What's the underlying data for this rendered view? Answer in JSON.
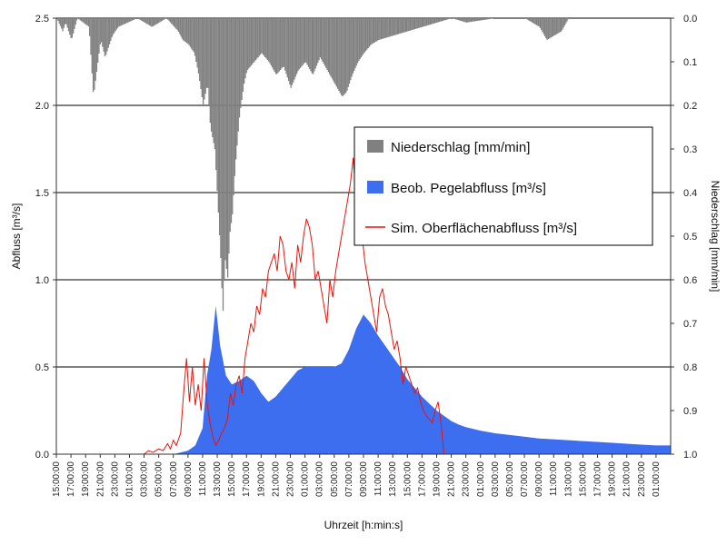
{
  "chart_data": {
    "type": "area",
    "xlabel": "Uhrzeit [h:min:s]",
    "ylabel_left": "Abfluss [m³/s]",
    "ylabel_right": "Niederschlag [mm/min]",
    "ylim_left": [
      0,
      2.5
    ],
    "yticks_left": [
      "0.0",
      "0.5",
      "1.0",
      "1.5",
      "2.0",
      "2.5"
    ],
    "ylim_right": [
      1.0,
      0.0
    ],
    "yticks_right": [
      "0.0",
      "0.1",
      "0.2",
      "0.3",
      "0.4",
      "0.5",
      "0.6",
      "0.7",
      "0.8",
      "0.9",
      "1.0"
    ],
    "x_tick_labels": [
      "15:00:00",
      "17:00:00",
      "19:00:00",
      "21:00:00",
      "23:00:00",
      "01:00:00",
      "03:00:00",
      "05:00:00",
      "07:00:00",
      "09:00:00",
      "11:00:00",
      "13:00:00",
      "15:00:00",
      "17:00:00",
      "19:00:00",
      "21:00:00",
      "23:00:00",
      "01:00:00",
      "03:00:00",
      "05:00:00",
      "07:00:00",
      "09:00:00",
      "11:00:00",
      "13:00:00",
      "15:00:00",
      "17:00:00",
      "19:00:00",
      "21:00:00",
      "23:00:00",
      "01:00:00",
      "03:00:00",
      "05:00:00",
      "07:00:00",
      "09:00:00",
      "11:00:00",
      "13:00:00",
      "15:00:00",
      "17:00:00",
      "19:00:00",
      "21:00:00",
      "23:00:00",
      "01:00:00"
    ],
    "grid": true,
    "legend_position": "upper-right",
    "series": [
      {
        "name": "Niederschlag [mm/min]",
        "kind": "inverted-bar",
        "axis": "right",
        "color": "#808080",
        "points": [
          [
            0,
            0.0
          ],
          [
            0.4,
            0.03
          ],
          [
            0.6,
            0.01
          ],
          [
            1.0,
            0.05
          ],
          [
            1.4,
            0.0
          ],
          [
            2.2,
            0.02
          ],
          [
            2.5,
            0.18
          ],
          [
            3.0,
            0.05
          ],
          [
            3.3,
            0.09
          ],
          [
            3.8,
            0.04
          ],
          [
            4.2,
            0.02
          ],
          [
            5.5,
            0.0
          ],
          [
            6.5,
            0.02
          ],
          [
            7.5,
            0.0
          ],
          [
            8.3,
            0.03
          ],
          [
            8.6,
            0.05
          ],
          [
            9.0,
            0.06
          ],
          [
            9.4,
            0.08
          ],
          [
            9.7,
            0.13
          ],
          [
            10.0,
            0.2
          ],
          [
            10.3,
            0.15
          ],
          [
            10.5,
            0.25
          ],
          [
            10.8,
            0.3
          ],
          [
            11.0,
            0.42
          ],
          [
            11.2,
            0.55
          ],
          [
            11.35,
            0.68
          ],
          [
            11.5,
            0.55
          ],
          [
            11.7,
            0.6
          ],
          [
            11.8,
            0.5
          ],
          [
            12.0,
            0.45
          ],
          [
            12.2,
            0.34
          ],
          [
            12.5,
            0.22
          ],
          [
            12.8,
            0.15
          ],
          [
            13.0,
            0.12
          ],
          [
            13.5,
            0.1
          ],
          [
            14.0,
            0.08
          ],
          [
            14.5,
            0.1
          ],
          [
            15.0,
            0.13
          ],
          [
            15.5,
            0.11
          ],
          [
            16.0,
            0.16
          ],
          [
            16.5,
            0.12
          ],
          [
            17.0,
            0.1
          ],
          [
            17.5,
            0.13
          ],
          [
            18.0,
            0.09
          ],
          [
            18.5,
            0.12
          ],
          [
            19.0,
            0.15
          ],
          [
            19.5,
            0.18
          ],
          [
            19.8,
            0.17
          ],
          [
            20.2,
            0.13
          ],
          [
            20.6,
            0.1
          ],
          [
            21.0,
            0.08
          ],
          [
            21.5,
            0.06
          ],
          [
            22.0,
            0.05
          ],
          [
            23.0,
            0.04
          ],
          [
            24.0,
            0.03
          ],
          [
            25.0,
            0.02
          ],
          [
            26.0,
            0.01
          ],
          [
            27.0,
            0.0
          ],
          [
            28.0,
            0.01
          ],
          [
            30.0,
            0.0
          ],
          [
            32.0,
            0.0
          ],
          [
            33.0,
            0.02
          ],
          [
            33.5,
            0.05
          ],
          [
            34.0,
            0.04
          ],
          [
            34.5,
            0.03
          ],
          [
            35.0,
            0.0
          ],
          [
            36.0,
            0.0
          ],
          [
            40.0,
            0.0
          ],
          [
            42.0,
            0.0
          ]
        ]
      },
      {
        "name": "Beob. Pegelabfluss [m³/s]",
        "kind": "area",
        "axis": "left",
        "color": "#3E6EF0",
        "points": [
          [
            0,
            0.0
          ],
          [
            8.0,
            0.0
          ],
          [
            8.5,
            0.01
          ],
          [
            9.0,
            0.02
          ],
          [
            9.5,
            0.05
          ],
          [
            10.0,
            0.15
          ],
          [
            10.3,
            0.45
          ],
          [
            10.6,
            0.6
          ],
          [
            10.9,
            0.85
          ],
          [
            11.2,
            0.62
          ],
          [
            11.6,
            0.45
          ],
          [
            12.0,
            0.4
          ],
          [
            12.5,
            0.42
          ],
          [
            13.0,
            0.45
          ],
          [
            13.5,
            0.42
          ],
          [
            14.0,
            0.35
          ],
          [
            14.5,
            0.3
          ],
          [
            15.0,
            0.33
          ],
          [
            15.5,
            0.38
          ],
          [
            16.0,
            0.43
          ],
          [
            16.5,
            0.48
          ],
          [
            17.0,
            0.5
          ],
          [
            18.0,
            0.5
          ],
          [
            19.0,
            0.5
          ],
          [
            19.5,
            0.52
          ],
          [
            20.0,
            0.6
          ],
          [
            20.5,
            0.72
          ],
          [
            21.0,
            0.8
          ],
          [
            21.5,
            0.75
          ],
          [
            22.0,
            0.68
          ],
          [
            22.5,
            0.62
          ],
          [
            23.0,
            0.56
          ],
          [
            23.5,
            0.5
          ],
          [
            24.0,
            0.43
          ],
          [
            24.5,
            0.38
          ],
          [
            25.0,
            0.33
          ],
          [
            25.5,
            0.29
          ],
          [
            26.0,
            0.25
          ],
          [
            26.5,
            0.22
          ],
          [
            27.0,
            0.19
          ],
          [
            27.5,
            0.17
          ],
          [
            28.0,
            0.155
          ],
          [
            29.0,
            0.135
          ],
          [
            30.0,
            0.12
          ],
          [
            31.0,
            0.11
          ],
          [
            32.0,
            0.1
          ],
          [
            33.0,
            0.09
          ],
          [
            34.0,
            0.085
          ],
          [
            35.0,
            0.08
          ],
          [
            36.0,
            0.075
          ],
          [
            37.0,
            0.07
          ],
          [
            38.0,
            0.065
          ],
          [
            39.0,
            0.06
          ],
          [
            40.0,
            0.055
          ],
          [
            41.0,
            0.05
          ],
          [
            42.0,
            0.05
          ]
        ]
      },
      {
        "name": "Sim. Oberflächenabfluss [m³/s]",
        "kind": "line",
        "axis": "left",
        "color": "#E8140A",
        "points": [
          [
            0,
            0.0
          ],
          [
            6.0,
            0.0
          ],
          [
            6.3,
            0.02
          ],
          [
            6.6,
            0.01
          ],
          [
            7.0,
            0.03
          ],
          [
            7.3,
            0.02
          ],
          [
            7.6,
            0.06
          ],
          [
            7.8,
            0.03
          ],
          [
            8.0,
            0.08
          ],
          [
            8.2,
            0.05
          ],
          [
            8.5,
            0.12
          ],
          [
            8.7,
            0.35
          ],
          [
            8.9,
            0.55
          ],
          [
            9.1,
            0.3
          ],
          [
            9.3,
            0.5
          ],
          [
            9.5,
            0.28
          ],
          [
            9.7,
            0.4
          ],
          [
            9.9,
            0.25
          ],
          [
            10.1,
            0.55
          ],
          [
            10.3,
            0.3
          ],
          [
            10.5,
            0.18
          ],
          [
            10.7,
            0.1
          ],
          [
            10.9,
            0.05
          ],
          [
            11.1,
            0.08
          ],
          [
            11.3,
            0.12
          ],
          [
            11.5,
            0.15
          ],
          [
            11.7,
            0.2
          ],
          [
            11.9,
            0.35
          ],
          [
            12.1,
            0.28
          ],
          [
            12.3,
            0.4
          ],
          [
            12.5,
            0.45
          ],
          [
            12.7,
            0.35
          ],
          [
            12.9,
            0.55
          ],
          [
            13.1,
            0.65
          ],
          [
            13.3,
            0.75
          ],
          [
            13.5,
            0.7
          ],
          [
            13.7,
            0.85
          ],
          [
            13.9,
            0.8
          ],
          [
            14.1,
            0.95
          ],
          [
            14.3,
            0.9
          ],
          [
            14.5,
            1.05
          ],
          [
            14.7,
            1.1
          ],
          [
            14.9,
            1.15
          ],
          [
            15.1,
            1.05
          ],
          [
            15.3,
            1.25
          ],
          [
            15.5,
            1.2
          ],
          [
            15.7,
            1.05
          ],
          [
            15.9,
            1.0
          ],
          [
            16.1,
            1.1
          ],
          [
            16.3,
            0.95
          ],
          [
            16.5,
            1.2
          ],
          [
            16.7,
            1.1
          ],
          [
            16.9,
            1.25
          ],
          [
            17.1,
            1.35
          ],
          [
            17.3,
            1.3
          ],
          [
            17.5,
            1.2
          ],
          [
            17.7,
            1.0
          ],
          [
            17.9,
            1.05
          ],
          [
            18.1,
            0.95
          ],
          [
            18.3,
            0.85
          ],
          [
            18.5,
            0.75
          ],
          [
            18.7,
            1.0
          ],
          [
            18.9,
            0.9
          ],
          [
            19.1,
            1.05
          ],
          [
            19.3,
            1.15
          ],
          [
            19.5,
            1.25
          ],
          [
            19.7,
            1.35
          ],
          [
            19.9,
            1.45
          ],
          [
            20.1,
            1.55
          ],
          [
            20.3,
            1.7
          ],
          [
            20.5,
            1.45
          ],
          [
            20.7,
            1.35
          ],
          [
            20.9,
            1.25
          ],
          [
            21.1,
            1.1
          ],
          [
            21.3,
            1.0
          ],
          [
            21.5,
            0.9
          ],
          [
            21.7,
            0.8
          ],
          [
            21.9,
            0.7
          ],
          [
            22.1,
            0.9
          ],
          [
            22.3,
            0.95
          ],
          [
            22.5,
            0.85
          ],
          [
            22.7,
            0.8
          ],
          [
            22.9,
            0.7
          ],
          [
            23.1,
            0.6
          ],
          [
            23.3,
            0.65
          ],
          [
            23.5,
            0.55
          ],
          [
            23.7,
            0.4
          ],
          [
            23.9,
            0.5
          ],
          [
            24.1,
            0.45
          ],
          [
            24.3,
            0.4
          ],
          [
            24.5,
            0.35
          ],
          [
            24.7,
            0.38
          ],
          [
            24.9,
            0.3
          ],
          [
            25.1,
            0.25
          ],
          [
            25.3,
            0.22
          ],
          [
            25.5,
            0.2
          ],
          [
            25.7,
            0.18
          ],
          [
            25.9,
            0.25
          ],
          [
            26.1,
            0.3
          ],
          [
            26.3,
            0.18
          ],
          [
            26.5,
            0.0
          ]
        ]
      }
    ]
  }
}
